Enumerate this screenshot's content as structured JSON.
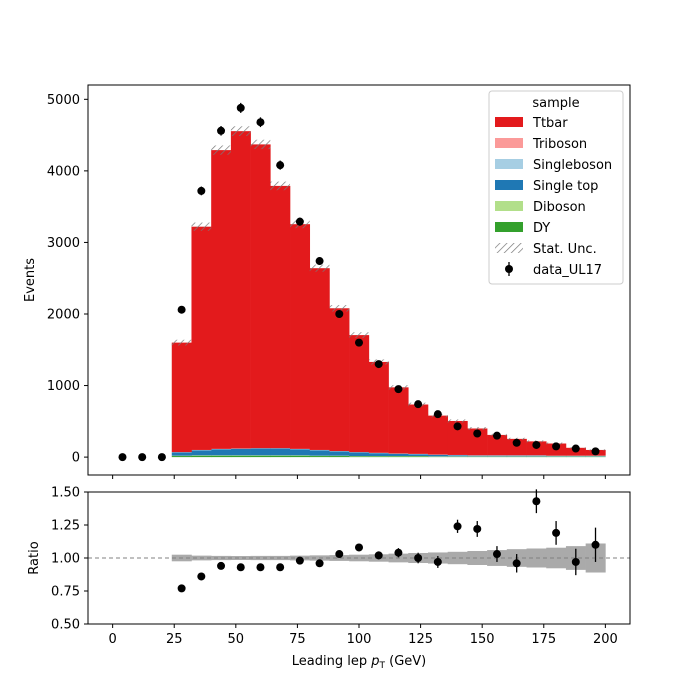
{
  "chart_data": [
    {
      "type": "bar",
      "stacked": true,
      "ylabel": "Events",
      "xlim": [
        -10,
        210
      ],
      "ylim": [
        -250,
        5200
      ],
      "yticks": [
        0,
        1000,
        2000,
        3000,
        4000,
        5000
      ],
      "bin_edges": [
        24,
        32,
        40,
        48,
        56,
        64,
        72,
        80,
        88,
        96,
        104,
        112,
        120,
        128,
        136,
        144,
        152,
        160,
        168,
        176,
        184,
        192,
        200
      ],
      "series": [
        {
          "name": "DY",
          "color": "#33a02c",
          "values": [
            15,
            20,
            20,
            20,
            20,
            20,
            20,
            15,
            15,
            10,
            10,
            10,
            10,
            5,
            5,
            5,
            5,
            5,
            5,
            5,
            5,
            5
          ]
        },
        {
          "name": "Diboson",
          "color": "#b2df8a",
          "values": [
            5,
            5,
            5,
            5,
            5,
            5,
            5,
            5,
            5,
            5,
            5,
            5,
            5,
            5,
            5,
            5,
            5,
            5,
            5,
            5,
            5,
            5
          ]
        },
        {
          "name": "Single top",
          "color": "#1f78b4",
          "values": [
            45,
            70,
            85,
            90,
            95,
            95,
            85,
            75,
            60,
            50,
            40,
            30,
            25,
            20,
            15,
            10,
            10,
            10,
            10,
            5,
            5,
            5
          ]
        },
        {
          "name": "Singleboson",
          "color": "#a6cee3",
          "values": [
            5,
            5,
            5,
            5,
            5,
            5,
            5,
            5,
            5,
            5,
            5,
            5,
            5,
            5,
            5,
            5,
            5,
            5,
            5,
            5,
            5,
            5
          ]
        },
        {
          "name": "Triboson",
          "color": "#fb9a99",
          "values": [
            0,
            0,
            0,
            0,
            0,
            0,
            0,
            0,
            0,
            0,
            0,
            0,
            0,
            0,
            0,
            0,
            0,
            0,
            0,
            0,
            0,
            0
          ]
        },
        {
          "name": "Ttbar",
          "color": "#e31a1c",
          "values": [
            1530,
            3120,
            4175,
            4435,
            4245,
            3665,
            3140,
            2540,
            1995,
            1635,
            1270,
            925,
            690,
            545,
            475,
            375,
            285,
            230,
            195,
            170,
            110,
            80
          ]
        }
      ],
      "stat_unc": {
        "name": "Stat. Unc.",
        "values": [
          40,
          58,
          65,
          68,
          65,
          60,
          56,
          50,
          45,
          40,
          36,
          30,
          26,
          23,
          22,
          20,
          17,
          15,
          14,
          13,
          10,
          9
        ]
      },
      "data": {
        "name": "data_UL17",
        "color": "#000000",
        "x": [
          4,
          12,
          20,
          28,
          36,
          44,
          52,
          60,
          68,
          76,
          84,
          92,
          100,
          108,
          116,
          124,
          132,
          140,
          148,
          156,
          164,
          172,
          180,
          188,
          196
        ],
        "y": [
          0,
          0,
          0,
          2060,
          3720,
          4560,
          4880,
          4680,
          4080,
          3290,
          2740,
          2000,
          1600,
          1300,
          950,
          740,
          600,
          430,
          330,
          300,
          200,
          170,
          150,
          120,
          80
        ],
        "yerr": [
          0,
          0,
          0,
          45,
          61,
          67,
          70,
          68,
          64,
          57,
          52,
          45,
          40,
          36,
          31,
          27,
          24,
          21,
          18,
          17,
          14,
          13,
          12,
          11,
          9
        ]
      },
      "legend": {
        "title": "sample",
        "placement": "upper-right"
      },
      "grid": false
    },
    {
      "type": "scatter",
      "xlabel_main": "Leading lep ",
      "xlabel_sym": "p",
      "xlabel_sub": "T",
      "xlabel_unit": " (GeV)",
      "ylabel": "Ratio",
      "xlim": [
        -10,
        210
      ],
      "ylim": [
        0.5,
        1.5
      ],
      "xticks": [
        0,
        25,
        50,
        75,
        100,
        125,
        150,
        175,
        200
      ],
      "yticks": [
        "0.50",
        "0.75",
        "1.00",
        "1.25",
        "1.50"
      ],
      "reference_line": 1.0,
      "unc_band": [
        0.025,
        0.018,
        0.016,
        0.015,
        0.016,
        0.016,
        0.018,
        0.02,
        0.022,
        0.025,
        0.028,
        0.033,
        0.038,
        0.042,
        0.047,
        0.053,
        0.06,
        0.067,
        0.072,
        0.078,
        0.09,
        0.11
      ],
      "points": {
        "x": [
          28,
          36,
          44,
          52,
          60,
          68,
          76,
          84,
          92,
          100,
          108,
          116,
          124,
          132,
          140,
          148,
          156,
          164,
          172,
          180,
          188,
          196
        ],
        "y": [
          0.77,
          0.86,
          0.94,
          0.93,
          0.93,
          0.93,
          0.98,
          0.96,
          1.03,
          1.08,
          1.02,
          1.04,
          1.0,
          0.97,
          1.24,
          1.22,
          1.03,
          0.96,
          1.43,
          1.19,
          0.97,
          1.1
        ],
        "yerr": [
          0.01,
          0.012,
          0.015,
          0.015,
          0.015,
          0.017,
          0.018,
          0.02,
          0.025,
          0.027,
          0.03,
          0.035,
          0.04,
          0.045,
          0.05,
          0.06,
          0.06,
          0.07,
          0.09,
          0.09,
          0.1,
          0.13
        ]
      }
    }
  ]
}
